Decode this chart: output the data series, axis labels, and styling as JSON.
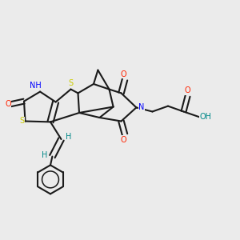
{
  "background_color": "#ebebeb",
  "bond_color": "#1a1a1a",
  "atom_colors": {
    "S": "#cccc00",
    "N": "#0000ff",
    "O": "#ff2200",
    "H": "#008888",
    "C": "#1a1a1a"
  }
}
